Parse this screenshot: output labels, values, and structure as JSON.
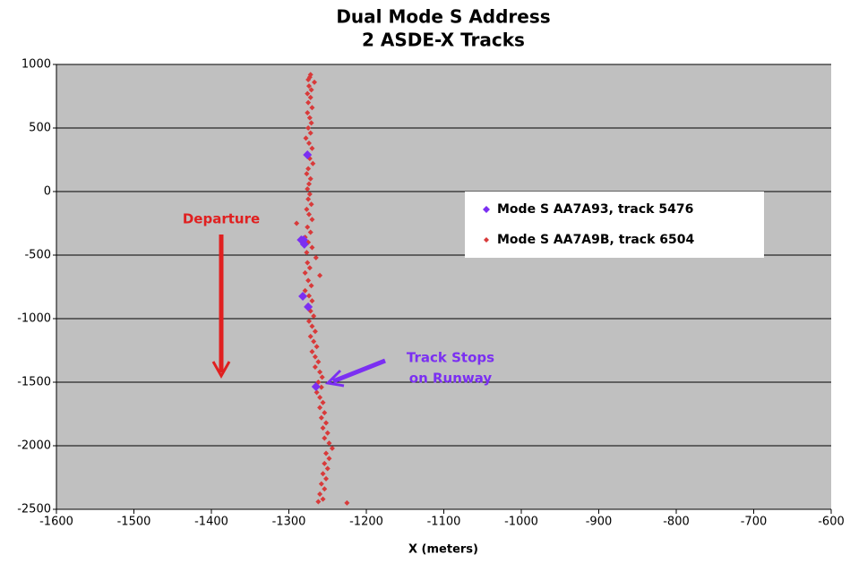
{
  "chart_data": {
    "type": "scatter",
    "title": "Dual Mode S Address",
    "subtitle": "2 ASDE-X Tracks",
    "xlabel": "X (meters)",
    "xlim": [
      -1600,
      -600
    ],
    "xticks": [
      -1600,
      -1500,
      -1400,
      -1300,
      -1200,
      -1100,
      -1000,
      -900,
      -800,
      -700,
      -600
    ],
    "ylim": [
      -2500,
      1000
    ],
    "yticks": [
      -2500,
      -2000,
      -1500,
      -1000,
      -500,
      0,
      500,
      1000
    ],
    "grid": true,
    "legend": "right",
    "annotations": [
      "Departure",
      "Track Stops",
      "on Runway"
    ],
    "series": [
      {
        "name": "Mode S AA7A93, track 5476",
        "color": "#7b2ff2",
        "x": [
          -1276,
          -1284,
          -1281,
          -1280,
          -1282,
          -1275,
          -1265
        ],
        "values": [
          289,
          -380,
          -380,
          -415,
          -824,
          -908,
          -1535
        ]
      },
      {
        "name": "Mode S AA7A9B, track 6504",
        "color": "#d83a3a",
        "x": [
          -1272,
          -1273,
          -1275,
          -1267,
          -1274,
          -1271,
          -1276,
          -1272,
          -1275,
          -1270,
          -1276,
          -1273,
          -1271,
          -1275,
          -1272,
          -1278,
          -1274,
          -1270,
          -1276,
          -1273,
          -1269,
          -1275,
          -1277,
          -1272,
          -1274,
          -1276,
          -1273,
          -1275,
          -1271,
          -1277,
          -1274,
          -1270,
          -1290,
          -1276,
          -1272,
          -1279,
          -1275,
          -1270,
          -1277,
          -1265,
          -1276,
          -1273,
          -1279,
          -1260,
          -1275,
          -1271,
          -1279,
          -1274,
          -1270,
          -1276,
          -1272,
          -1268,
          -1274,
          -1270,
          -1266,
          -1272,
          -1268,
          -1264,
          -1270,
          -1266,
          -1262,
          -1266,
          -1260,
          -1257,
          -1262,
          -1258,
          -1264,
          -1260,
          -1256,
          -1260,
          -1254,
          -1258,
          -1252,
          -1256,
          -1250,
          -1254,
          -1248,
          -1244,
          -1252,
          -1248,
          -1254,
          -1250,
          -1256,
          -1252,
          -1258,
          -1254,
          -1260,
          -1256,
          -1262,
          -1225
        ],
        "values": [
          920,
          900,
          880,
          860,
          830,
          800,
          770,
          740,
          700,
          660,
          620,
          580,
          540,
          500,
          460,
          420,
          380,
          340,
          300,
          260,
          220,
          180,
          140,
          100,
          60,
          20,
          -20,
          -60,
          -100,
          -140,
          -180,
          -220,
          -250,
          -280,
          -320,
          -360,
          -400,
          -440,
          -480,
          -520,
          -560,
          -600,
          -640,
          -660,
          -700,
          -740,
          -780,
          -820,
          -860,
          -900,
          -940,
          -980,
          -1020,
          -1060,
          -1100,
          -1140,
          -1180,
          -1220,
          -1260,
          -1300,
          -1340,
          -1380,
          -1420,
          -1460,
          -1500,
          -1540,
          -1580,
          -1620,
          -1660,
          -1700,
          -1740,
          -1780,
          -1820,
          -1860,
          -1900,
          -1940,
          -1980,
          -2020,
          -2060,
          -2100,
          -2140,
          -2180,
          -2220,
          -2260,
          -2300,
          -2340,
          -2380,
          -2420,
          -2440,
          -2450
        ]
      }
    ]
  }
}
